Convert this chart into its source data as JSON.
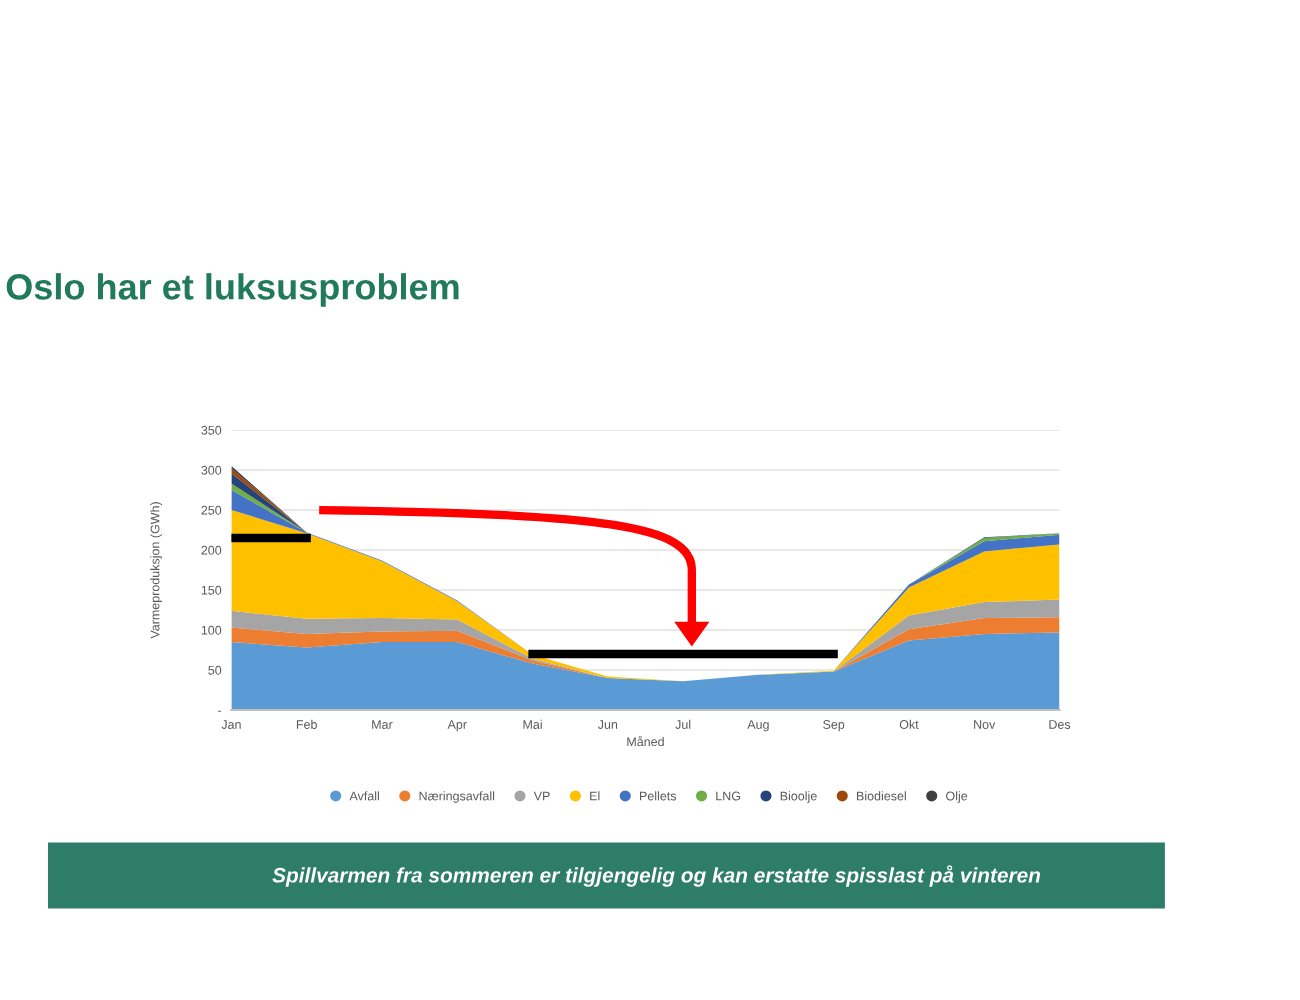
{
  "chart_data": {
    "type": "area",
    "stacked": true,
    "title": "Oslo har et luksusproblem",
    "xlabel": "Måned",
    "ylabel": "Varmeproduksjon (GWh)",
    "categories": [
      "Jan",
      "Feb",
      "Mar",
      "Apr",
      "Mai",
      "Jun",
      "Jul",
      "Aug",
      "Sep",
      "Okt",
      "Nov",
      "Des"
    ],
    "series": [
      {
        "name": "Avfall",
        "color": "#5b9bd5",
        "values": [
          85,
          78,
          85,
          85,
          58,
          40,
          36,
          44,
          48,
          87,
          95,
          97
        ]
      },
      {
        "name": "Næringsavfall",
        "color": "#ed7d31",
        "values": [
          18,
          17,
          13,
          14,
          4,
          0,
          0,
          0,
          0,
          14,
          20,
          19
        ]
      },
      {
        "name": "VP",
        "color": "#a5a5a5",
        "values": [
          21,
          19,
          17,
          14,
          2,
          0,
          0,
          0,
          0,
          17,
          20,
          22
        ]
      },
      {
        "name": "El",
        "color": "#ffc000",
        "values": [
          126,
          107,
          71,
          23,
          5,
          2,
          0,
          0,
          1,
          35,
          63,
          69
        ]
      },
      {
        "name": "Pellets",
        "color": "#4472c4",
        "values": [
          25,
          1,
          1,
          1,
          0,
          0,
          0,
          0,
          0,
          4,
          13,
          12
        ]
      },
      {
        "name": "LNG",
        "color": "#70ad47",
        "values": [
          8,
          0,
          0,
          0,
          0,
          0,
          0,
          0,
          0,
          0,
          4,
          2
        ]
      },
      {
        "name": "Bioolje",
        "color": "#264478",
        "values": [
          13,
          0,
          0,
          0,
          0,
          0,
          0,
          0,
          0,
          0,
          1,
          0
        ]
      },
      {
        "name": "Biodiesel",
        "color": "#9e480e",
        "values": [
          6,
          0,
          0,
          0,
          0,
          0,
          0,
          0,
          0,
          0,
          0,
          0
        ]
      },
      {
        "name": "Olje",
        "color": "#404040",
        "values": [
          3,
          0,
          0,
          0,
          0,
          0,
          0,
          0,
          0,
          0,
          0,
          0
        ]
      },
      {
        "type": "line",
        "color": "#000000",
        "values": [
          215,
          215,
          null,
          null,
          null,
          null,
          null,
          null,
          null,
          null,
          null,
          null
        ]
      },
      {
        "type": "line",
        "color": "#000000",
        "values": [
          null,
          null,
          null,
          null,
          70,
          70,
          70,
          70,
          70,
          null,
          null,
          null
        ]
      }
    ],
    "ylim": [
      0,
      350
    ],
    "yticks": [
      {
        "value": 0,
        "label": "-"
      },
      50,
      100,
      150,
      200,
      250,
      300,
      350
    ],
    "grid": "y",
    "legend": "bottom",
    "annotations": [
      "Spillvarmen fra sommeren er tilgjengelig og kan erstatte spisslast på vinteren"
    ]
  }
}
